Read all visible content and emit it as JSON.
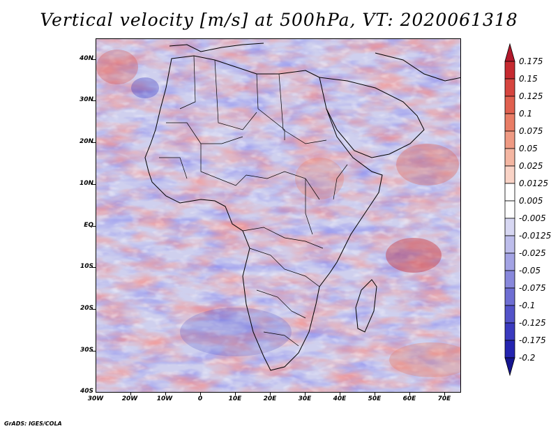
{
  "title": "Vertical velocity [m/s] at 500hPa, VT: 2020061318",
  "credit": "GrADS: IGES/COLA",
  "map": {
    "region": "Africa",
    "variable": "Vertical velocity",
    "units": "m/s",
    "level": "500hPa",
    "valid_time": "2020061318",
    "lat_labels": [
      "40N",
      "30N",
      "20N",
      "10N",
      "EQ",
      "10S",
      "20S",
      "30S",
      "40S"
    ],
    "lon_labels": [
      "30W",
      "20W",
      "10W",
      "0",
      "10E",
      "20E",
      "30E",
      "40E",
      "50E",
      "60E",
      "70E"
    ]
  },
  "colorbar": {
    "labels": [
      "0.175",
      "0.15",
      "0.125",
      "0.1",
      "0.075",
      "0.05",
      "0.025",
      "0.0125",
      "0.005",
      "-0.005",
      "-0.0125",
      "-0.025",
      "-0.05",
      "-0.075",
      "-0.1",
      "-0.125",
      "-0.175",
      "-0.2"
    ],
    "colors": [
      "#b2182b",
      "#c62a30",
      "#d6453f",
      "#e0604f",
      "#e97d66",
      "#ef9a83",
      "#f4b6a2",
      "#f9d3c6",
      "#ffffff",
      "#ffffff",
      "#d7d7f2",
      "#bdbdeb",
      "#a3a3e4",
      "#8888dc",
      "#6e6ed3",
      "#5353c9",
      "#3a3abf",
      "#2424b0",
      "#15158f"
    ]
  }
}
